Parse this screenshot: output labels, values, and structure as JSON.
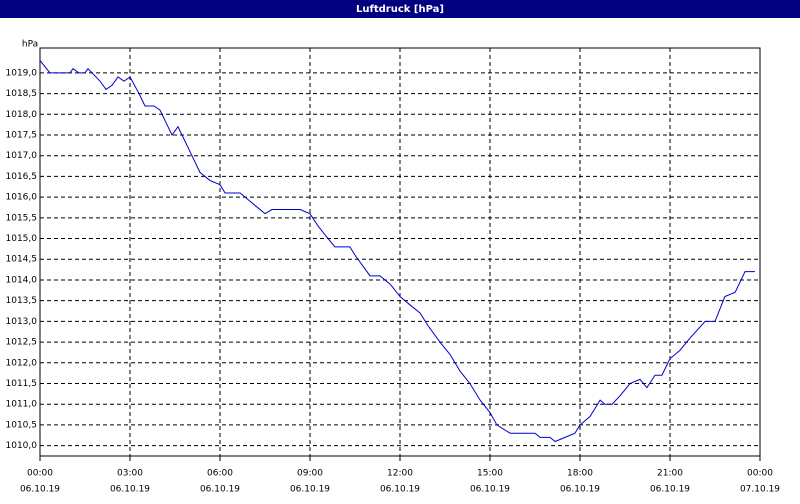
{
  "chart_data": {
    "type": "line",
    "title": "Luftdruck [hPa]",
    "y_unit": "hPa",
    "x": [
      0,
      0.33,
      1.0,
      1.1,
      1.3,
      1.5,
      1.6,
      2.0,
      2.2,
      2.4,
      2.6,
      2.8,
      3.0,
      3.3,
      3.5,
      3.8,
      4.0,
      4.2,
      4.4,
      4.6,
      4.8,
      5.0,
      5.33,
      5.67,
      6.0,
      6.17,
      6.67,
      7.0,
      7.5,
      7.73,
      8.67,
      9.0,
      9.27,
      9.6,
      9.83,
      10.33,
      10.5,
      11.0,
      11.33,
      11.67,
      12.0,
      12.33,
      12.67,
      12.93,
      13.33,
      13.67,
      14.0,
      14.33,
      14.67,
      15.0,
      15.23,
      15.67,
      16.5,
      16.67,
      17.0,
      17.17,
      17.5,
      17.83,
      18.0,
      18.33,
      18.67,
      18.83,
      19.07,
      19.33,
      19.67,
      20.0,
      20.23,
      20.5,
      20.73,
      21.0,
      21.33,
      21.67,
      22.17,
      22.5,
      22.83,
      23.17,
      23.5,
      23.83
    ],
    "series": [
      {
        "name": "Luftdruck",
        "color": "#0000cc",
        "values": [
          1019.3,
          1019.0,
          1019.0,
          1019.1,
          1019.0,
          1019.0,
          1019.1,
          1018.8,
          1018.6,
          1018.7,
          1018.9,
          1018.8,
          1018.9,
          1018.5,
          1018.2,
          1018.2,
          1018.1,
          1017.8,
          1017.5,
          1017.7,
          1017.4,
          1017.1,
          1016.6,
          1016.4,
          1016.3,
          1016.1,
          1016.1,
          1015.9,
          1015.6,
          1015.7,
          1015.7,
          1015.6,
          1015.3,
          1015.0,
          1014.8,
          1014.8,
          1014.6,
          1014.1,
          1014.1,
          1013.9,
          1013.6,
          1013.4,
          1013.2,
          1012.9,
          1012.5,
          1012.2,
          1011.8,
          1011.5,
          1011.1,
          1010.8,
          1010.5,
          1010.3,
          1010.3,
          1010.2,
          1010.2,
          1010.1,
          1010.2,
          1010.3,
          1010.5,
          1010.7,
          1011.1,
          1011.0,
          1011.0,
          1011.2,
          1011.5,
          1011.6,
          1011.4,
          1011.7,
          1011.7,
          1012.1,
          1012.3,
          1012.6,
          1013.0,
          1013.0,
          1013.6,
          1013.7,
          1014.2,
          1014.2
        ]
      }
    ],
    "xlim": [
      0,
      24
    ],
    "xticks": [
      {
        "value": 0,
        "label": "00:00"
      },
      {
        "value": 3,
        "label": "03:00"
      },
      {
        "value": 6,
        "label": "06:00"
      },
      {
        "value": 9,
        "label": "09:00"
      },
      {
        "value": 12,
        "label": "12:00"
      },
      {
        "value": 15,
        "label": "15:00"
      },
      {
        "value": 18,
        "label": "18:00"
      },
      {
        "value": 21,
        "label": "21:00"
      },
      {
        "value": 24,
        "label": "00:00"
      }
    ],
    "xtick_dates": [
      "06.10.19",
      "06.10.19",
      "06.10.19",
      "06.10.19",
      "06.10.19",
      "06.10.19",
      "06.10.19",
      "06.10.19",
      "07.10.19"
    ],
    "ylim": [
      1009.75,
      1019.6
    ],
    "yticks": [
      {
        "value": 1010,
        "label": "1010,0"
      },
      {
        "value": 1010.5,
        "label": "1010,5"
      },
      {
        "value": 1011,
        "label": "1011,0"
      },
      {
        "value": 1011.5,
        "label": "1011,5"
      },
      {
        "value": 1012,
        "label": "1012,0"
      },
      {
        "value": 1012.5,
        "label": "1012,5"
      },
      {
        "value": 1013,
        "label": "1013,0"
      },
      {
        "value": 1013.5,
        "label": "1013,5"
      },
      {
        "value": 1014,
        "label": "1014,0"
      },
      {
        "value": 1014.5,
        "label": "1014,5"
      },
      {
        "value": 1015,
        "label": "1015,0"
      },
      {
        "value": 1015.5,
        "label": "1015,5"
      },
      {
        "value": 1016,
        "label": "1016,0"
      },
      {
        "value": 1016.5,
        "label": "1016,5"
      },
      {
        "value": 1017,
        "label": "1017,0"
      },
      {
        "value": 1017.5,
        "label": "1017,5"
      },
      {
        "value": 1018,
        "label": "1018,0"
      },
      {
        "value": 1018.5,
        "label": "1018,5"
      },
      {
        "value": 1019,
        "label": "1019,0"
      }
    ],
    "grid": true
  }
}
